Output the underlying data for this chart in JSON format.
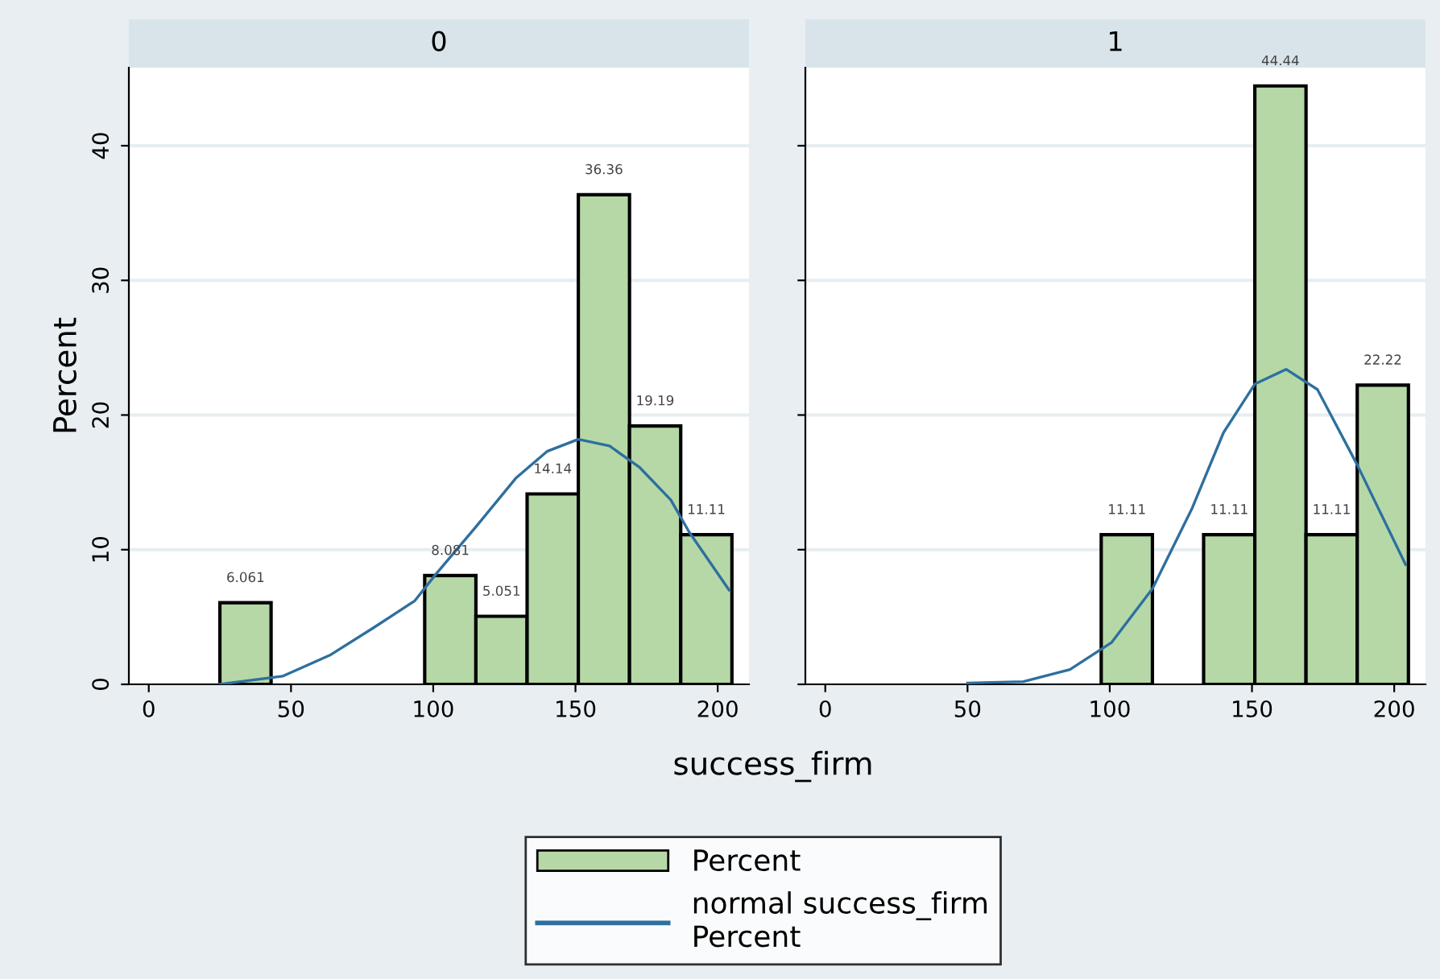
{
  "chart_data": [
    {
      "type": "histogram",
      "title": "0",
      "xlabel": "success_firm",
      "ylabel": "Percent",
      "bins": [
        25,
        43,
        61,
        79,
        97,
        115,
        133,
        151,
        169,
        187,
        205
      ],
      "xlim": [
        -7,
        211
      ],
      "ylim": [
        0,
        45.8
      ],
      "xticks": [
        0,
        50,
        100,
        150,
        200
      ],
      "yticks": [
        0,
        10,
        20,
        30,
        40
      ],
      "grid": "y",
      "legend": "bottom",
      "series": [
        {
          "name": "Percent",
          "color": "#b6d8a7",
          "values": [
            6.061,
            null,
            null,
            null,
            8.081,
            5.051,
            14.14,
            36.36,
            19.19,
            11.11
          ],
          "value_labels": [
            "6.061",
            null,
            null,
            null,
            "8.081",
            "5.051",
            "14.14",
            "36.36",
            "19.19",
            "11.11"
          ]
        },
        {
          "type": "line",
          "name": "normal success_firm\nPercent",
          "color": "#2e6f9e",
          "x": [
            25,
            47,
            64,
            79,
            93.5,
            101,
            115,
            129,
            140,
            151,
            162,
            172.6,
            183.5,
            190,
            204
          ],
          "values": [
            0,
            0.6,
            2.2,
            4.2,
            6.2,
            8.2,
            11.7,
            15.3,
            17.3,
            18.2,
            17.7,
            16.1,
            13.7,
            11.3,
            7.0
          ]
        }
      ]
    },
    {
      "type": "histogram",
      "title": "1",
      "bins": [
        25,
        43,
        61,
        79,
        97,
        115,
        133,
        151,
        169,
        187,
        205
      ],
      "xlim": [
        -7,
        211
      ],
      "ylim": [
        0,
        45.8
      ],
      "xticks": [
        0,
        50,
        100,
        150,
        200
      ],
      "yticks": [
        0,
        10,
        20,
        30,
        40
      ],
      "grid": "y",
      "tick_labels": "x",
      "series": [
        {
          "color": "#b6d8a7",
          "values": [
            null,
            null,
            null,
            null,
            11.11,
            null,
            11.11,
            44.44,
            11.11,
            22.22
          ],
          "value_labels": [
            null,
            null,
            null,
            null,
            "11.11",
            null,
            "11.11",
            "44.44",
            "11.11",
            "22.22"
          ]
        },
        {
          "type": "line",
          "color": "#2e6f9e",
          "x": [
            50,
            69.6,
            86,
            100.6,
            115,
            129,
            140,
            151,
            162,
            173,
            187,
            204
          ],
          "values": [
            0.1,
            0.2,
            1.1,
            3.1,
            7.1,
            13.1,
            18.7,
            22.3,
            23.4,
            21.9,
            16.3,
            8.9
          ]
        }
      ]
    }
  ]
}
